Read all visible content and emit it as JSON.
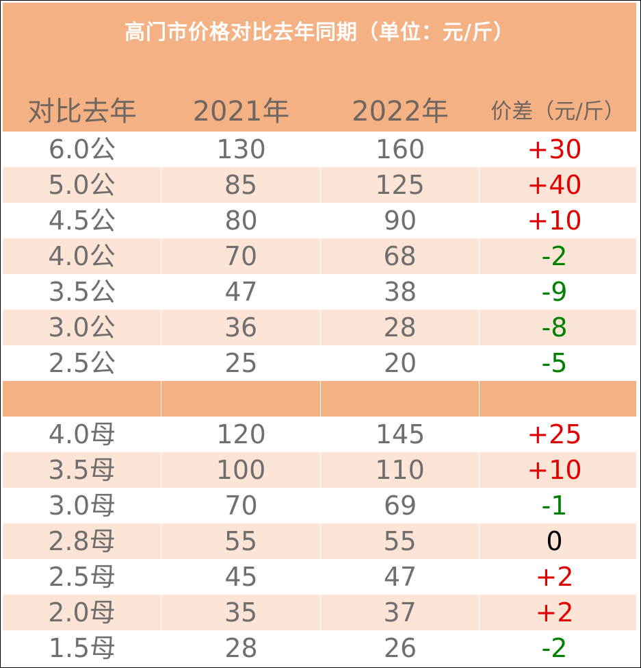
{
  "title": "高门市价格对比去年同期（单位：元/斤）",
  "headers": [
    "对比去年",
    "2021年",
    "2022年",
    "价差（元/斤）"
  ],
  "rows": [
    {
      "spec": "6.0公",
      "y2021": "130",
      "y2022": "160",
      "diff": "+30",
      "sign": "pos"
    },
    {
      "spec": "5.0公",
      "y2021": "85",
      "y2022": "125",
      "diff": "+40",
      "sign": "pos"
    },
    {
      "spec": "4.5公",
      "y2021": "80",
      "y2022": "90",
      "diff": "+10",
      "sign": "pos"
    },
    {
      "spec": "4.0公",
      "y2021": "70",
      "y2022": "68",
      "diff": "-2",
      "sign": "neg"
    },
    {
      "spec": "3.5公",
      "y2021": "47",
      "y2022": "38",
      "diff": "-9",
      "sign": "neg"
    },
    {
      "spec": "3.0公",
      "y2021": "36",
      "y2022": "28",
      "diff": "-8",
      "sign": "neg"
    },
    {
      "spec": "2.5公",
      "y2021": "25",
      "y2022": "20",
      "diff": "-5",
      "sign": "neg"
    },
    {
      "spec": "",
      "y2021": "",
      "y2022": "",
      "diff": "",
      "sign": "sep"
    },
    {
      "spec": "4.0母",
      "y2021": "120",
      "y2022": "145",
      "diff": "+25",
      "sign": "pos"
    },
    {
      "spec": "3.5母",
      "y2021": "100",
      "y2022": "110",
      "diff": "+10",
      "sign": "pos"
    },
    {
      "spec": "3.0母",
      "y2021": "70",
      "y2022": "69",
      "diff": "-1",
      "sign": "neg"
    },
    {
      "spec": "2.8母",
      "y2021": "55",
      "y2022": "55",
      "diff": "0",
      "sign": "zero"
    },
    {
      "spec": "2.5母",
      "y2021": "45",
      "y2022": "47",
      "diff": "+2",
      "sign": "pos"
    },
    {
      "spec": "2.0母",
      "y2021": "35",
      "y2022": "37",
      "diff": "+2",
      "sign": "pos"
    },
    {
      "spec": "1.5母",
      "y2021": "28",
      "y2022": "26",
      "diff": "-2",
      "sign": "neg"
    }
  ],
  "colors": {
    "header_bg": "#f4b183",
    "stripe_bg": "#fce4d6",
    "positive": "#e00000",
    "negative": "#008000",
    "neutral": "#000000"
  }
}
